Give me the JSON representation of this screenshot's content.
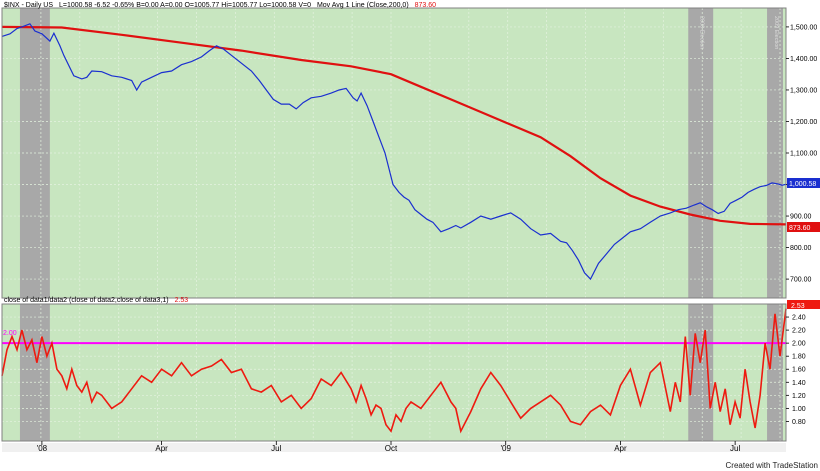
{
  "colors": {
    "plot_bg": "#c8e6c0",
    "grid": "#e4f2df",
    "recession": "#a8a8a8",
    "price": "#1a2fd0",
    "ma": "#e01010",
    "ratio": "#ee1a10",
    "threshold": "#ff00ff",
    "frame": "#808080"
  },
  "header": {
    "line1_prefix": "$INX - Daily  US",
    "line1_quote": "L=1000.58  -6.52  -0.65%  B=0.00  A=0.00  O=1005.77  Hi=1005.77  Lo=1000.58  V=0",
    "line1_ma_label": "Mov Avg 1 Line (Close,200,0)",
    "line1_ma_value": "873.60"
  },
  "subheader": {
    "label": "close of data1/data2 (close of data2,close of data3,1)",
    "value": "2.53"
  },
  "credit": "Created with TradeStation",
  "chart_data": [
    {
      "type": "line",
      "ylim": [
        640,
        1560
      ],
      "yticks": [
        "1,500.00",
        "1,400.00",
        "1,300.00",
        "1,200.00",
        "1,100.00",
        "1,000.00",
        "900.00",
        "800.00",
        "700.00"
      ],
      "ytick_values": [
        1500,
        1400,
        1300,
        1200,
        1100,
        1000,
        900,
        800,
        700
      ],
      "last_price_label": "1,000.58",
      "ma_label": "873.60",
      "price_series": {
        "x": [
          0,
          8,
          15,
          20,
          28,
          33,
          40,
          48,
          52,
          58,
          62,
          72,
          80,
          85,
          90,
          100,
          110,
          120,
          130,
          135,
          140,
          150,
          160,
          170,
          180,
          190,
          200,
          208,
          215,
          222,
          230,
          240,
          250,
          258,
          265,
          272,
          280,
          288,
          295,
          302,
          310,
          320,
          330,
          338,
          345,
          352,
          356,
          360,
          366,
          372,
          378,
          384,
          392,
          398,
          403,
          408,
          414,
          420,
          426,
          432,
          440,
          448,
          455,
          460,
          470,
          480,
          490,
          500,
          510,
          520,
          530,
          540,
          550,
          560,
          566,
          572,
          578,
          584,
          590,
          598,
          606,
          614,
          622,
          630,
          640,
          650,
          660,
          670,
          678,
          686,
          694,
          700,
          706,
          712,
          718,
          724,
          730,
          736,
          742,
          748,
          754,
          760,
          766,
          772,
          778,
          782,
          786
        ],
        "y": [
          1470,
          1478,
          1495,
          1500,
          1510,
          1487,
          1478,
          1455,
          1480,
          1440,
          1410,
          1345,
          1335,
          1340,
          1360,
          1358,
          1345,
          1340,
          1330,
          1300,
          1325,
          1340,
          1355,
          1360,
          1380,
          1390,
          1405,
          1425,
          1440,
          1430,
          1410,
          1385,
          1360,
          1330,
          1300,
          1270,
          1255,
          1255,
          1240,
          1260,
          1275,
          1280,
          1290,
          1300,
          1305,
          1275,
          1265,
          1290,
          1250,
          1200,
          1150,
          1100,
          1000,
          975,
          960,
          950,
          920,
          905,
          890,
          880,
          850,
          860,
          870,
          862,
          880,
          900,
          890,
          900,
          910,
          890,
          860,
          840,
          845,
          820,
          815,
          790,
          760,
          720,
          700,
          750,
          780,
          810,
          830,
          850,
          860,
          880,
          900,
          910,
          920,
          925,
          935,
          942,
          930,
          920,
          908,
          915,
          940,
          950,
          960,
          975,
          985,
          993,
          997,
          1005,
          1002,
          998,
          1000.58
        ]
      },
      "ma_series": {
        "x": [
          0,
          60,
          120,
          180,
          240,
          300,
          350,
          390,
          420,
          450,
          480,
          510,
          540,
          570,
          600,
          630,
          660,
          690,
          720,
          750,
          786
        ],
        "y": [
          1500,
          1498,
          1475,
          1450,
          1425,
          1395,
          1375,
          1350,
          1310,
          1270,
          1230,
          1190,
          1150,
          1090,
          1020,
          965,
          930,
          905,
          885,
          875,
          873.6
        ]
      }
    },
    {
      "type": "line",
      "ylim": [
        0.5,
        2.6
      ],
      "yticks": [
        "2.40",
        "2.20",
        "2.00",
        "1.80",
        "1.60",
        "1.40",
        "1.20",
        "1.00",
        "0.80"
      ],
      "ytick_values": [
        2.4,
        2.2,
        2.0,
        1.8,
        1.6,
        1.4,
        1.2,
        1.0,
        0.8
      ],
      "threshold": 2.0,
      "threshold_label": "2.00",
      "last_value_label": "2.53",
      "ratio_series": {
        "x": [
          0,
          5,
          10,
          15,
          20,
          25,
          30,
          35,
          40,
          45,
          50,
          55,
          60,
          65,
          70,
          75,
          80,
          85,
          90,
          95,
          100,
          110,
          120,
          130,
          140,
          150,
          160,
          170,
          180,
          190,
          200,
          210,
          220,
          230,
          240,
          250,
          260,
          270,
          280,
          290,
          300,
          310,
          320,
          330,
          340,
          350,
          355,
          360,
          365,
          370,
          375,
          380,
          385,
          390,
          395,
          400,
          405,
          410,
          420,
          430,
          440,
          450,
          455,
          460,
          470,
          480,
          490,
          500,
          510,
          520,
          530,
          540,
          550,
          560,
          570,
          580,
          590,
          600,
          610,
          620,
          630,
          640,
          650,
          660,
          670,
          675,
          680,
          685,
          690,
          695,
          700,
          705,
          710,
          715,
          720,
          725,
          730,
          735,
          740,
          745,
          750,
          755,
          760,
          765,
          770,
          775,
          780,
          786
        ],
        "y": [
          1.5,
          1.9,
          2.1,
          1.9,
          2.2,
          1.9,
          2.05,
          1.7,
          2.1,
          1.8,
          2.0,
          1.6,
          1.5,
          1.3,
          1.6,
          1.35,
          1.25,
          1.4,
          1.1,
          1.25,
          1.2,
          1.0,
          1.1,
          1.3,
          1.5,
          1.4,
          1.6,
          1.5,
          1.7,
          1.5,
          1.6,
          1.65,
          1.75,
          1.55,
          1.6,
          1.3,
          1.25,
          1.35,
          1.1,
          1.2,
          1.0,
          1.15,
          1.45,
          1.35,
          1.55,
          1.3,
          1.1,
          1.35,
          1.15,
          0.9,
          1.05,
          1.0,
          0.75,
          0.65,
          0.9,
          0.8,
          1.0,
          1.1,
          1.0,
          1.2,
          1.4,
          1.1,
          1.0,
          0.65,
          0.95,
          1.3,
          1.55,
          1.35,
          1.1,
          0.85,
          1.0,
          1.1,
          1.2,
          1.05,
          0.8,
          0.75,
          0.95,
          1.05,
          0.9,
          1.35,
          1.6,
          1.05,
          1.55,
          1.7,
          0.95,
          1.4,
          1.1,
          2.1,
          1.2,
          2.15,
          1.7,
          2.2,
          1.0,
          1.4,
          0.95,
          1.3,
          0.75,
          1.1,
          0.85,
          1.6,
          1.1,
          0.7,
          1.2,
          2.0,
          1.6,
          2.45,
          1.8,
          2.53
        ]
      }
    }
  ],
  "x_axis": {
    "labels": [
      "'08",
      "Apr",
      "Jul",
      "Oct",
      "'09",
      "Apr",
      "Jul"
    ],
    "positions": [
      40,
      160,
      275,
      390,
      505,
      620,
      735
    ]
  },
  "recessions": [
    {
      "start": 18,
      "end": 48
    },
    {
      "start": 688,
      "end": 713
    },
    {
      "start": 767,
      "end": 783
    }
  ],
  "top_panel_annotations": [
    "2008 Election",
    "2009 Election"
  ]
}
